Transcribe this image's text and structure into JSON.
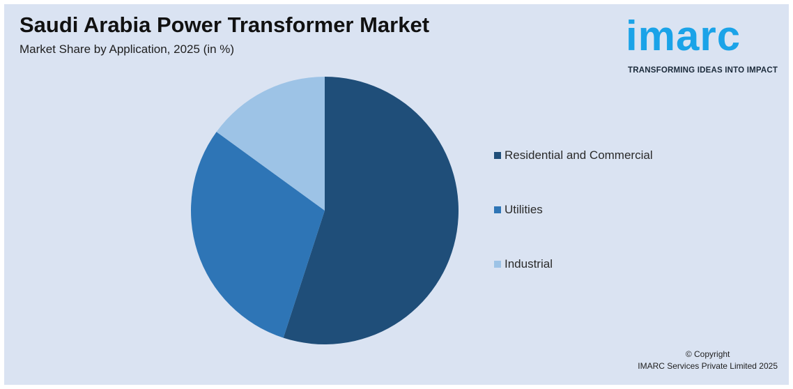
{
  "header": {
    "title": "Saudi Arabia Power Transformer Market",
    "subtitle": "Market Share by Application, 2025 (in %)"
  },
  "logo": {
    "word": "imarc",
    "tagline": "TRANSFORMING IDEAS INTO IMPACT",
    "color": "#1aa3e8"
  },
  "chart_data": {
    "type": "pie",
    "title": "Saudi Arabia Power Transformer Market",
    "subtitle": "Market Share by Application, 2025 (in %)",
    "categories": [
      "Residential and Commercial",
      "Utilities",
      "Industrial"
    ],
    "values": [
      55,
      30,
      15
    ],
    "colors": [
      "#1f4e79",
      "#2e75b6",
      "#9dc3e6"
    ],
    "legend": "right"
  },
  "footer": {
    "copyright_line1": "© Copyright",
    "copyright_line2": "IMARC Services Private Limited 2025"
  }
}
